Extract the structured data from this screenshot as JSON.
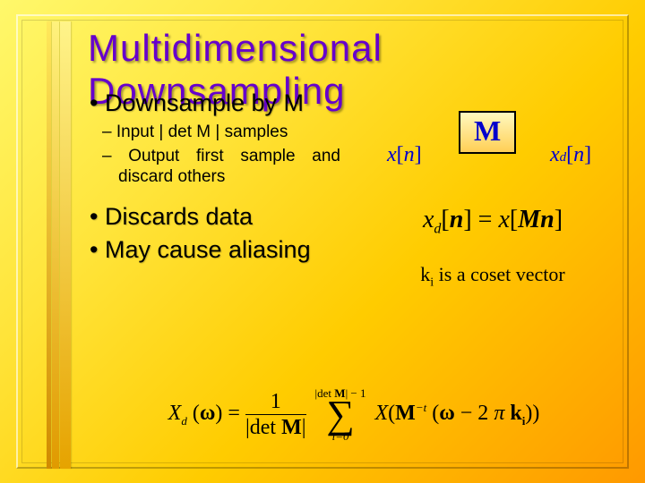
{
  "slide": {
    "title": "Multidimensional Downsampling",
    "bullets": [
      {
        "level": 1,
        "text": "Downsample by M"
      },
      {
        "level": 2,
        "text": "Input | det M | samples"
      },
      {
        "level": 2,
        "text": "Output first sample and discard others"
      },
      {
        "level": 1,
        "text": "Discards data"
      },
      {
        "level": 1,
        "text": "May cause aliasing"
      }
    ],
    "diagram": {
      "box_label": "M",
      "arrow_glyph": "↓",
      "input_signal": {
        "base": "x",
        "bracket_open": "[",
        "index": "n",
        "bracket_close": "]"
      },
      "output_signal": {
        "base": "x",
        "sub": "d",
        "bracket_open": "[",
        "index": "n",
        "bracket_close": "]"
      }
    },
    "equation1": {
      "lhs_base": "x",
      "lhs_sub": "d",
      "lhs_arg": "n",
      "eq": " = ",
      "rhs_base": "x",
      "rhs_M": "M",
      "rhs_arg": "n"
    },
    "coset_note": {
      "k": "k",
      "i": "i",
      "rest": " is a coset vector"
    },
    "equation2": {
      "X": "X",
      "d": "d",
      "omega": "ω",
      "eq": " = ",
      "one": "1",
      "detM": "det ",
      "M": "M",
      "sum_top_left": "|det ",
      "sum_top_right": "| − 1",
      "sigma": "∑",
      "sum_bot": "i=0",
      "open": "(",
      "Mt": "M",
      "Mt_sup": "−t",
      "minus": " − 2",
      "pi": "π ",
      "k": "k",
      "ki": "i",
      "close": "))"
    }
  },
  "style": {
    "title_color": "#6600cc",
    "accent_color": "#0000cc",
    "title_fontsize": 42,
    "bullet1_fontsize": 27,
    "bullet2_fontsize": 19,
    "eq1_fontsize": 28,
    "coset_fontsize": 22,
    "eq2_fontsize": 24,
    "bg_gradient": [
      "#fff86b",
      "#ffe43a",
      "#ffcc00",
      "#ff9900"
    ],
    "box_gradient": [
      "#fff9c0",
      "#ffcf55"
    ],
    "box_border": "#000000"
  }
}
